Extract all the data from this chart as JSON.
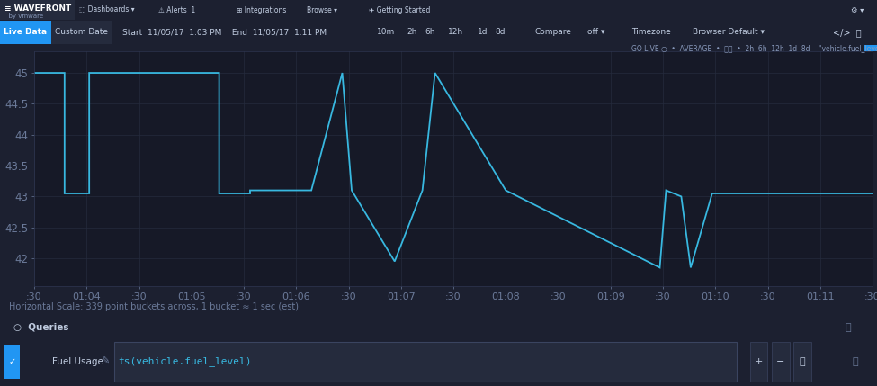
{
  "background_color": "#1c2030",
  "topbar_color": "#1c2030",
  "plot_bg_color": "#161927",
  "line_color": "#38b8e0",
  "line_width": 1.3,
  "ylim": [
    41.55,
    45.35
  ],
  "yticks": [
    42,
    42.5,
    43,
    43.5,
    44,
    44.5,
    45
  ],
  "ytick_labels": [
    "42",
    "42.5",
    "43",
    "43.5",
    "44",
    "44.5",
    "45"
  ],
  "tick_color": "#6b7a99",
  "grid_color": "#252b3d",
  "xtick_labels": [
    ":30",
    "01:04",
    ":30",
    "01:05",
    ":30",
    "01:06",
    ":30",
    "01:07",
    ":30",
    "01:08",
    ":30",
    "01:09",
    ":30",
    "01:10",
    ":30",
    "01:11",
    ":30"
  ],
  "num_xticks": 17,
  "footer_text": "Horizontal Scale: 339 point buckets across, 1 bucket ≈ 1 sec (est)",
  "segments_x": [
    0.0,
    0.58,
    0.58,
    1.05,
    1.05,
    3.53,
    3.53,
    4.12,
    4.12,
    4.12,
    5.29,
    5.29,
    5.88,
    5.88,
    6.06,
    6.06,
    6.88,
    6.88,
    7.41,
    7.41,
    7.65,
    7.65,
    9.0,
    9.0,
    11.94,
    11.94,
    12.06,
    12.06,
    12.35,
    12.35,
    12.53,
    12.53,
    12.94,
    12.94,
    16.0
  ],
  "segments_y": [
    45.0,
    45.0,
    43.05,
    43.05,
    45.0,
    45.0,
    43.05,
    43.05,
    43.1,
    43.1,
    43.1,
    43.1,
    45.0,
    45.0,
    43.1,
    43.1,
    41.95,
    41.95,
    43.1,
    43.1,
    45.0,
    45.0,
    43.1,
    43.1,
    41.85,
    41.85,
    43.1,
    43.1,
    43.0,
    43.0,
    41.85,
    41.85,
    43.05,
    43.05,
    43.05
  ],
  "panel_bg": "#1c2030",
  "border_color": "#2e3550",
  "header_bar_color": "#252b3d",
  "footer_bar_color": "#1a1e2c",
  "query_bar_color": "#1a1e2c"
}
